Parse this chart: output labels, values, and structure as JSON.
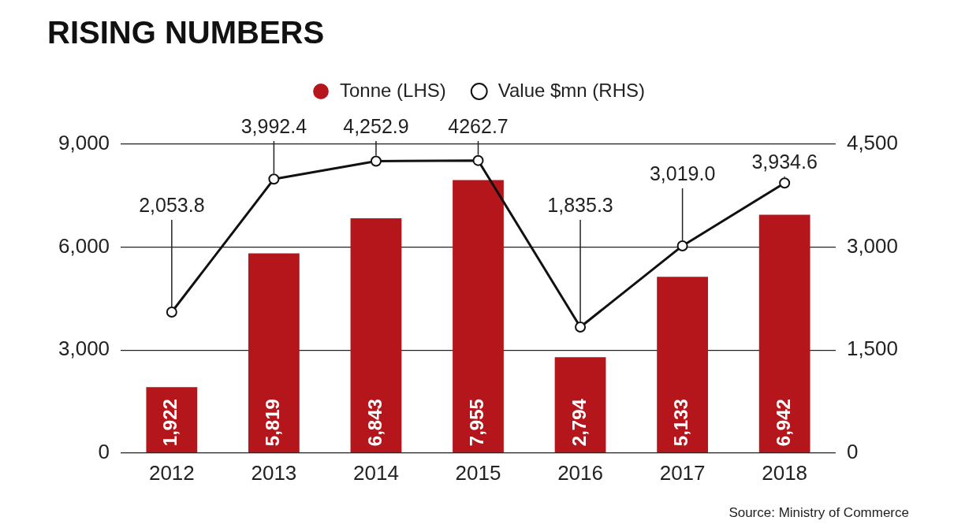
{
  "chart_data": {
    "type": "bar",
    "title": "RISING NUMBERS",
    "categories": [
      "2012",
      "2013",
      "2014",
      "2015",
      "2016",
      "2017",
      "2018"
    ],
    "series": [
      {
        "name": "Tonne (LHS)",
        "color": "#b5161b",
        "values": [
          1922,
          5819,
          6843,
          7955,
          2794,
          5133,
          6942
        ],
        "value_labels": [
          "1,922",
          "5,819",
          "6,843",
          "7,955",
          "2,794",
          "5,133",
          "6,942"
        ]
      },
      {
        "name": "Value $mn (RHS)",
        "type": "line",
        "axis": "y2",
        "color": "#111111",
        "marker": "circle",
        "values": [
          2053.8,
          3992.4,
          4252.9,
          4262.7,
          1835.3,
          3019.0,
          3934.6
        ],
        "value_labels": [
          "2,053.8",
          "3,992.4",
          "4,252.9",
          "4262.7",
          "1,835.3",
          "3,019.0",
          "3,934.6"
        ]
      }
    ],
    "ylim": [
      0,
      9000
    ],
    "yticks": [
      0,
      {
        "value": 3000,
        "label": "3,000"
      },
      {
        "value": 6000,
        "label": "6,000"
      },
      {
        "value": 9000,
        "label": "9,000"
      }
    ],
    "y2lim": [
      0,
      4500
    ],
    "y2ticks": [
      0,
      {
        "value": 1500,
        "label": "1,500"
      },
      {
        "value": 3000,
        "label": "3,000"
      },
      {
        "value": 4500,
        "label": "4,500"
      }
    ],
    "grid": "y",
    "legend": "top",
    "annotations": [
      "Source: Ministry of Commerce"
    ]
  }
}
